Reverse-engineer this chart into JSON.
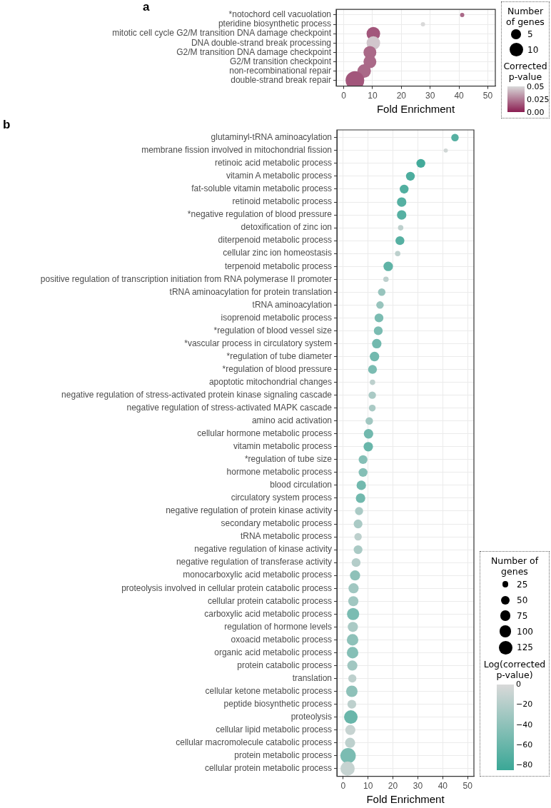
{
  "chart_data": [
    {
      "type": "bubble",
      "title": "a",
      "orientation": "horizontal",
      "xlabel": "Fold Enrichment",
      "grid": true,
      "categories": [
        "*notochord cell vacuolation",
        "pteridine biosynthetic process",
        "mitotic cell cycle G2/M transition DNA damage checkpoint",
        "DNA double-strand break processing",
        "G2/M transition DNA damage checkpoint",
        "G2/M transition checkpoint",
        "non-recombinational repair",
        "double-strand break repair"
      ],
      "values": [
        41.1,
        27.5,
        10.3,
        10.3,
        9.1,
        9.1,
        7.1,
        3.9
      ],
      "sizes": [
        1,
        1,
        10,
        10,
        9,
        9,
        10,
        19
      ],
      "cvalues": [
        0.02,
        0.05,
        0.015,
        0.045,
        0.02,
        0.02,
        0.02,
        0.015
      ],
      "xlim": [
        -2.6,
        52.6
      ],
      "xticks": [
        0,
        10,
        20,
        30,
        40,
        50
      ],
      "legend_title": "Number of genes",
      "size_legend": [
        5,
        10
      ],
      "clabel": "Corrected p-value",
      "clim": [
        0,
        0.05
      ],
      "cticks": [
        {
          "value": 0,
          "label": "0.00"
        },
        0.025,
        0.05
      ]
    },
    {
      "type": "bubble",
      "title": "b",
      "orientation": "horizontal",
      "xlabel": "Fold Enrichment",
      "grid": true,
      "categories": [
        "glutaminyl-tRNA aminoacylation",
        "membrane fission involved in mitochondrial fission",
        "retinoic acid metabolic process",
        "vitamin A metabolic process",
        "fat-soluble vitamin metabolic process",
        "retinoid metabolic process",
        "*negative regulation of blood pressure",
        "detoxification of zinc ion",
        "diterpenoid metabolic process",
        "cellular zinc ion homeostasis",
        "terpenoid metabolic process",
        "positive regulation of transcription initiation from RNA polymerase II promoter",
        "tRNA aminoacylation for protein translation",
        "tRNA aminoacylation",
        "isoprenoid metabolic process",
        "*regulation of blood vessel size",
        "*vascular process in circulatory system",
        "*regulation of tube diameter",
        "*regulation of blood pressure",
        "apoptotic mitochondrial changes",
        "negative regulation of stress-activated protein kinase signaling cascade",
        "negative regulation of stress-activated MAPK cascade",
        "amino acid activation",
        "cellular hormone metabolic process",
        "vitamin metabolic process",
        "*regulation of tube size",
        "hormone metabolic process",
        "blood circulation",
        "circulatory system process",
        "negative regulation of protein kinase activity",
        "secondary metabolic process",
        "tRNA metabolic process",
        "negative regulation of kinase activity",
        "negative regulation of transferase activity",
        "monocarboxylic acid metabolic process",
        "proteolysis involved in cellular protein catabolic process",
        "cellular protein catabolic process",
        "carboxylic acid metabolic process",
        "regulation of hormone levels",
        "oxoacid metabolic process",
        "organic acid metabolic process",
        "protein catabolic process",
        "translation",
        "cellular ketone metabolic process",
        "peptide biosynthetic process",
        "proteolysis",
        "cellular lipid metabolic process",
        "cellular macromolecule catabolic process",
        "protein metabolic process",
        "cellular protein metabolic process"
      ],
      "values": [
        44.9,
        41.2,
        31.2,
        27.0,
        24.5,
        23.5,
        23.5,
        23.1,
        22.8,
        21.9,
        18.1,
        17.2,
        15.5,
        14.8,
        14.4,
        14.1,
        13.5,
        12.6,
        11.8,
        11.8,
        11.7,
        11.7,
        10.5,
        10.2,
        10.1,
        8.0,
        8.0,
        7.3,
        7.0,
        6.4,
        6.0,
        6.0,
        6.0,
        5.2,
        4.8,
        4.2,
        4.1,
        4.0,
        3.9,
        3.8,
        3.8,
        3.7,
        3.7,
        3.5,
        3.5,
        3.1,
        2.9,
        2.8,
        2.0,
        1.8
      ],
      "sizes": [
        38,
        12,
        53,
        53,
        53,
        61,
        61,
        20,
        53,
        20,
        61,
        20,
        38,
        38,
        53,
        53,
        61,
        61,
        53,
        20,
        38,
        31,
        38,
        61,
        61,
        53,
        53,
        61,
        61,
        45,
        53,
        38,
        53,
        53,
        70,
        70,
        70,
        101,
        70,
        90,
        90,
        70,
        45,
        90,
        53,
        125,
        70,
        70,
        160,
        138
      ],
      "cvalues": [
        -70,
        -5,
        -80,
        -75,
        -72,
        -70,
        -70,
        -15,
        -70,
        -15,
        -65,
        -15,
        -35,
        -35,
        -50,
        -50,
        -55,
        -55,
        -50,
        -15,
        -25,
        -25,
        -30,
        -55,
        -60,
        -45,
        -45,
        -55,
        -55,
        -25,
        -25,
        -15,
        -25,
        -20,
        -40,
        -30,
        -30,
        -50,
        -25,
        -40,
        -45,
        -30,
        -15,
        -40,
        -15,
        -60,
        -10,
        -15,
        -50,
        -10
      ],
      "xlim": [
        -2.5,
        52.5
      ],
      "xticks": [
        0,
        10,
        20,
        30,
        40,
        50
      ],
      "legend_title": "Number of genes",
      "size_legend": [
        25,
        50,
        75,
        100,
        125
      ],
      "clabel": "Log(corrected p-value)",
      "clim": [
        -85,
        0
      ],
      "cticks": [
        {
          "value": 0,
          "label": "0"
        },
        {
          "value": -20,
          "label": "−20"
        },
        {
          "value": -40,
          "label": "−40"
        },
        {
          "value": -60,
          "label": "−60"
        },
        {
          "value": -80,
          "label": "−80"
        }
      ]
    }
  ]
}
